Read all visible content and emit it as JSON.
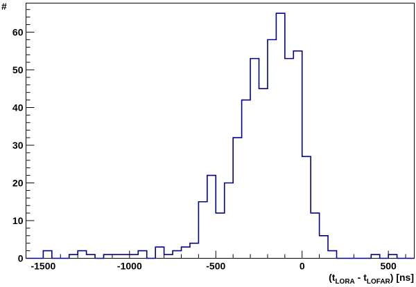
{
  "chart_data": {
    "type": "bar",
    "histogram": true,
    "title": "",
    "ylabel": "#",
    "xlabel": {
      "prefix": "(t",
      "sub1": "LORA",
      "middle": " - t",
      "sub2": "LOFAR",
      "suffix": ") [ns]"
    },
    "xlim": [
      -1600,
      650
    ],
    "ylim": [
      0,
      67.7
    ],
    "bin_width": 50,
    "bin_edges_start": -1600,
    "x_ticks": [
      -1500,
      -1000,
      -500,
      0,
      500
    ],
    "x_tick_labels": [
      "-1500",
      "-1000",
      "-500",
      "0",
      "500"
    ],
    "y_ticks": [
      0,
      10,
      20,
      30,
      40,
      50,
      60
    ],
    "y_tick_labels": [
      "0",
      "10",
      "20",
      "30",
      "40",
      "50",
      "60"
    ],
    "grid": false,
    "legend": "none",
    "line_color": "#00008b",
    "values": [
      0,
      0,
      2,
      0,
      0,
      1,
      2,
      1,
      0,
      1,
      1,
      1,
      1,
      2,
      0,
      3,
      1,
      2,
      3,
      4,
      15,
      22,
      12,
      20,
      32,
      42,
      53,
      45,
      58,
      65,
      53,
      55,
      27,
      12,
      6,
      2,
      0,
      0,
      0,
      0,
      1,
      0,
      1,
      0,
      0
    ]
  }
}
